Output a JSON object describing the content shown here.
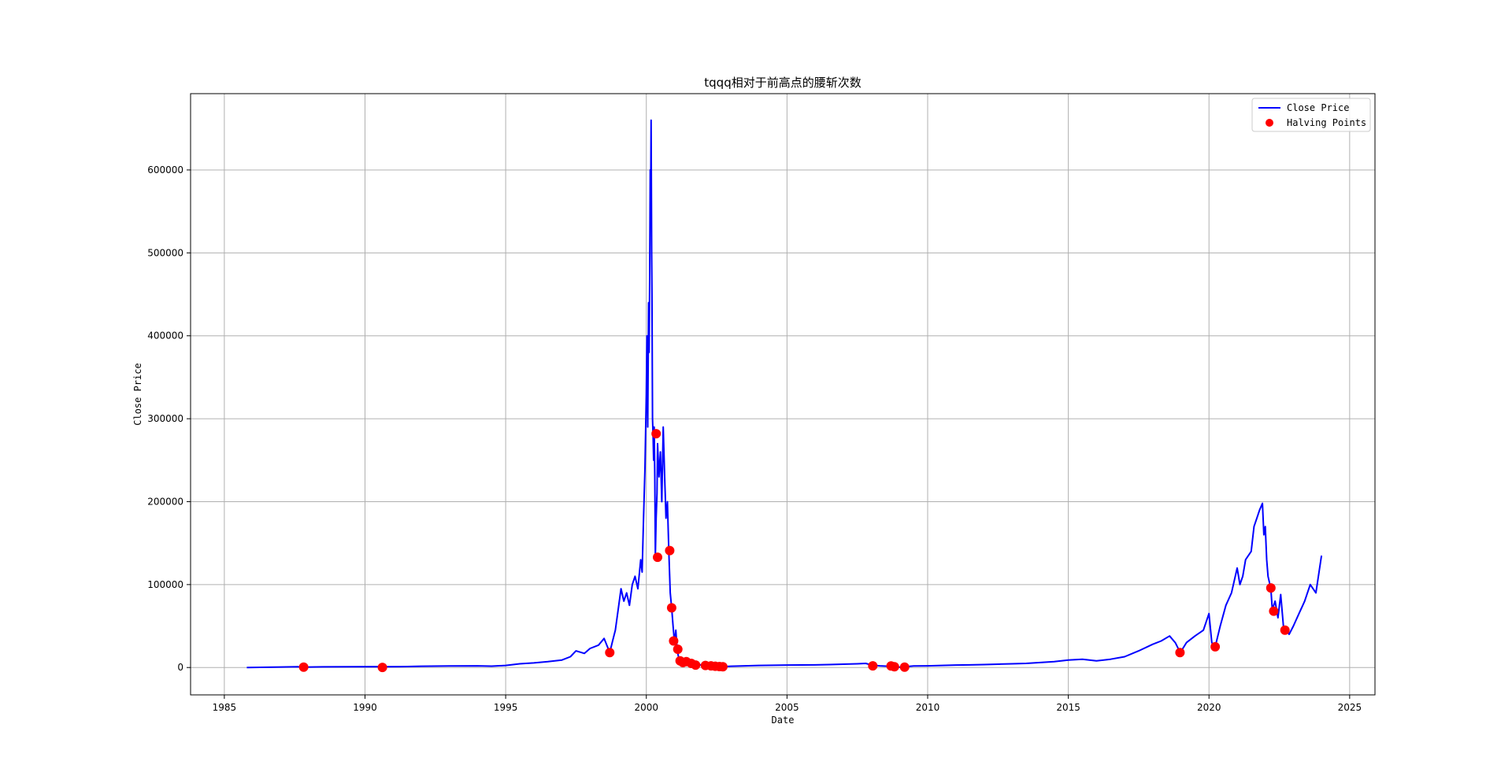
{
  "chart_data": {
    "type": "line",
    "title": "tqqq相对于前高点的腰斩次数",
    "xlabel": "Date",
    "ylabel": "Close Price",
    "xlim": [
      1983.8,
      2025.9
    ],
    "ylim": [
      -33000,
      692000
    ],
    "xticks": [
      1985,
      1990,
      1995,
      2000,
      2005,
      2010,
      2015,
      2020,
      2025
    ],
    "yticks": [
      0,
      100000,
      200000,
      300000,
      400000,
      500000,
      600000
    ],
    "ytick_labels": [
      "0",
      "100000",
      "200000",
      "300000",
      "400000",
      "500000",
      "600000"
    ],
    "grid": true,
    "legend_position": "top-right",
    "colors": {
      "line": "#0000ff",
      "points": "#ff0000",
      "grid": "#b0b0b0"
    },
    "series": [
      {
        "name": "Close Price",
        "kind": "line",
        "x": [
          1985.8,
          1986.5,
          1987.0,
          1987.6,
          1987.8,
          1988.5,
          1989.5,
          1990.5,
          1990.7,
          1991.5,
          1992.0,
          1993.0,
          1994.0,
          1994.5,
          1995.0,
          1995.5,
          1996.0,
          1996.5,
          1997.0,
          1997.3,
          1997.5,
          1997.8,
          1998.0,
          1998.3,
          1998.5,
          1998.7,
          1998.8,
          1998.9,
          1999.0,
          1999.1,
          1999.2,
          1999.3,
          1999.4,
          1999.5,
          1999.6,
          1999.7,
          1999.8,
          1999.85,
          1999.9,
          1999.95,
          2000.0,
          2000.02,
          2000.05,
          2000.08,
          2000.1,
          2000.12,
          2000.14,
          2000.15,
          2000.17,
          2000.19,
          2000.2,
          2000.22,
          2000.24,
          2000.26,
          2000.28,
          2000.3,
          2000.32,
          2000.35,
          2000.38,
          2000.4,
          2000.45,
          2000.5,
          2000.55,
          2000.6,
          2000.65,
          2000.7,
          2000.75,
          2000.8,
          2000.85,
          2000.9,
          2000.95,
          2001.0,
          2001.05,
          2001.1,
          2001.15,
          2001.2,
          2001.3,
          2001.4,
          2001.5,
          2001.6,
          2001.7,
          2001.8,
          2002.0,
          2002.2,
          2002.4,
          2002.6,
          2002.8,
          2003.0,
          2003.5,
          2004.0,
          2004.5,
          2005.0,
          2005.5,
          2006.0,
          2006.5,
          2007.0,
          2007.5,
          2007.8,
          2008.0,
          2008.3,
          2008.6,
          2008.8,
          2009.0,
          2009.2,
          2009.5,
          2010.0,
          2010.5,
          2011.0,
          2011.5,
          2012.0,
          2012.5,
          2013.0,
          2013.5,
          2014.0,
          2014.5,
          2015.0,
          2015.5,
          2016.0,
          2016.5,
          2017.0,
          2017.5,
          2018.0,
          2018.3,
          2018.6,
          2018.8,
          2018.98,
          2019.2,
          2019.5,
          2019.8,
          2020.0,
          2020.1,
          2020.22,
          2020.4,
          2020.6,
          2020.8,
          2021.0,
          2021.1,
          2021.2,
          2021.3,
          2021.5,
          2021.6,
          2021.7,
          2021.8,
          2021.9,
          2021.95,
          2022.0,
          2022.05,
          2022.1,
          2022.2,
          2022.25,
          2022.35,
          2022.45,
          2022.55,
          2022.65,
          2022.75,
          2022.85,
          2023.0,
          2023.2,
          2023.4,
          2023.6,
          2023.8,
          2024.0
        ],
        "y": [
          0,
          300,
          600,
          900,
          500,
          800,
          1000,
          1100,
          900,
          1200,
          1500,
          1800,
          2000,
          1600,
          2500,
          4500,
          5500,
          7000,
          9000,
          13000,
          20000,
          17000,
          23000,
          27000,
          35000,
          18000,
          32000,
          45000,
          70000,
          95000,
          80000,
          90000,
          75000,
          100000,
          110000,
          95000,
          130000,
          115000,
          180000,
          240000,
          330000,
          400000,
          290000,
          440000,
          380000,
          470000,
          600000,
          540000,
          660000,
          500000,
          450000,
          300000,
          280000,
          250000,
          290000,
          230000,
          135000,
          180000,
          210000,
          270000,
          230000,
          260000,
          200000,
          290000,
          230000,
          180000,
          200000,
          140000,
          90000,
          72000,
          50000,
          30000,
          45000,
          20000,
          12000,
          8000,
          10000,
          7000,
          6000,
          5000,
          4000,
          3500,
          3000,
          2500,
          2000,
          1500,
          1200,
          1500,
          2000,
          2500,
          2700,
          3000,
          3100,
          3200,
          3500,
          4000,
          4500,
          5000,
          3000,
          2000,
          1500,
          1000,
          500,
          1000,
          1800,
          2000,
          2500,
          3000,
          3200,
          3500,
          4000,
          4500,
          5000,
          6000,
          7000,
          9000,
          10000,
          8000,
          10000,
          13000,
          20000,
          28000,
          32000,
          38000,
          30000,
          18000,
          30000,
          38000,
          45000,
          65000,
          30000,
          25000,
          50000,
          75000,
          90000,
          120000,
          100000,
          110000,
          130000,
          140000,
          170000,
          180000,
          190000,
          198000,
          160000,
          170000,
          130000,
          110000,
          95000,
          70000,
          80000,
          60000,
          88000,
          48000,
          45000,
          40000,
          50000,
          65000,
          80000,
          100000,
          90000,
          135000
        ]
      },
      {
        "name": "Halving Points",
        "kind": "scatter",
        "x": [
          1987.82,
          1990.62,
          1998.7,
          2000.35,
          2000.4,
          2000.83,
          2000.9,
          2000.97,
          2001.12,
          2001.2,
          2001.3,
          2001.42,
          2001.6,
          2001.75,
          2002.1,
          2002.3,
          2002.45,
          2002.6,
          2002.72,
          2008.05,
          2008.7,
          2008.82,
          2009.18,
          2018.97,
          2020.22,
          2022.2,
          2022.3,
          2022.7
        ],
        "y": [
          500,
          100,
          18000,
          282000,
          133000,
          141000,
          72000,
          32000,
          22000,
          8000,
          6000,
          7000,
          5000,
          3000,
          2500,
          2000,
          1500,
          1200,
          1000,
          2000,
          1800,
          1000,
          500,
          18000,
          25000,
          96000,
          68000,
          45000
        ]
      }
    ]
  }
}
